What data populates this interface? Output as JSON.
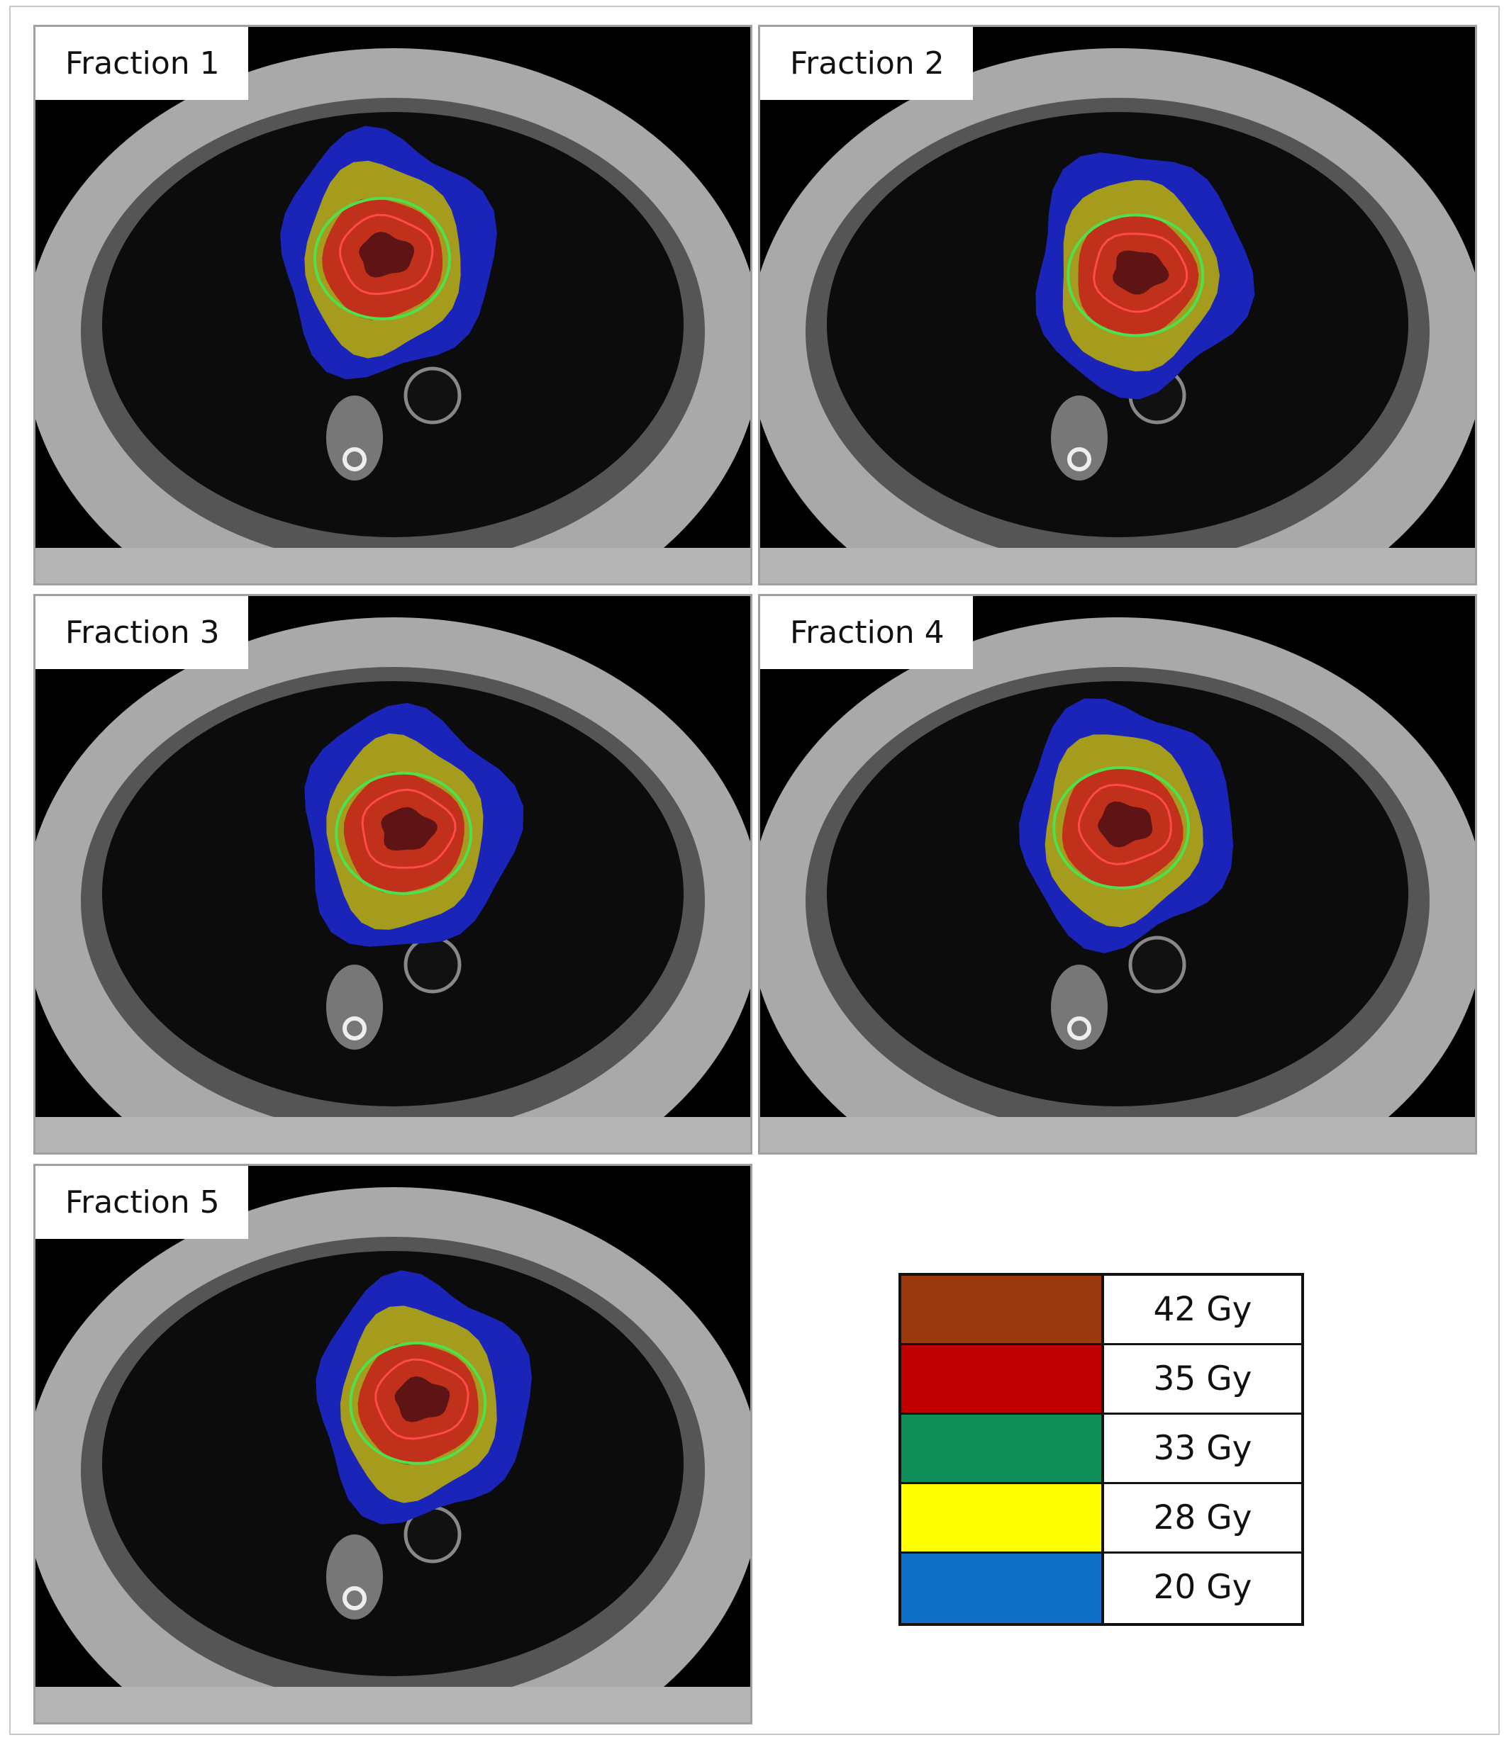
{
  "panels": [
    {
      "label": "Fraction 1"
    },
    {
      "label": "Fraction 2"
    },
    {
      "label": "Fraction 3"
    },
    {
      "label": "Fraction 4"
    },
    {
      "label": "Fraction 5"
    }
  ],
  "legend": [
    {
      "label": "42 Gy",
      "color": "#9b3a0e"
    },
    {
      "label": "35 Gy",
      "color": "#c00000"
    },
    {
      "label": "33 Gy",
      "color": "#0f8f58"
    },
    {
      "label": "28 Gy",
      "color": "#ffff00"
    },
    {
      "label": "20 Gy",
      "color": "#0f6fc6"
    }
  ]
}
